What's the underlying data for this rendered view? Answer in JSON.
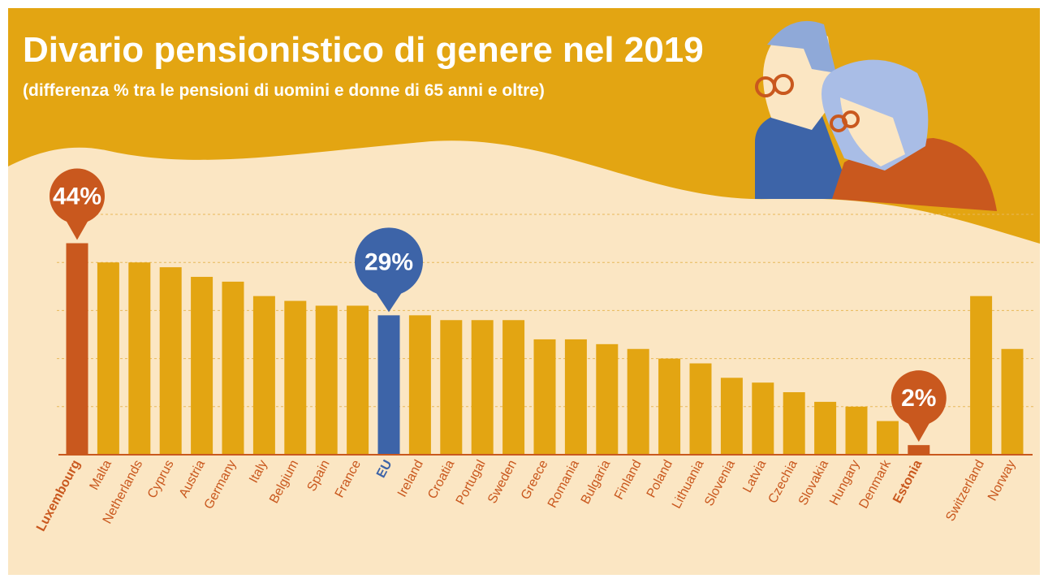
{
  "chart_data": {
    "type": "bar",
    "title": "Divario pensionistico di genere nel 2019",
    "subtitle": "(differenza % tra le pensioni di uomini e donne di 65 anni e oltre)",
    "categories": [
      "Luxembourg",
      "Malta",
      "Netherlands",
      "Cyprus",
      "Austria",
      "Germany",
      "Italy",
      "Belgium",
      "Spain",
      "France",
      "EU",
      "Ireland",
      "Croatia",
      "Portugal",
      "Sweden",
      "Greece",
      "Romania",
      "Bulgaria",
      "Finland",
      "Poland",
      "Lithuania",
      "Slovenia",
      "Latvia",
      "Czechia",
      "Slovakia",
      "Hungary",
      "Denmark",
      "Estonia",
      null,
      "Switzerland",
      "Norway"
    ],
    "values": [
      44,
      40,
      40,
      39,
      37,
      36,
      33,
      32,
      31,
      31,
      29,
      29,
      28,
      28,
      28,
      24,
      24,
      23,
      22,
      20,
      19,
      16,
      15,
      13,
      11,
      10,
      7,
      2,
      null,
      33,
      22
    ],
    "value_labels": [
      "44%",
      null,
      null,
      null,
      null,
      null,
      null,
      null,
      null,
      null,
      "29%",
      null,
      null,
      null,
      null,
      null,
      null,
      null,
      null,
      null,
      null,
      null,
      null,
      null,
      null,
      null,
      null,
      "2%",
      null,
      null,
      null
    ],
    "colors": [
      "#c9581e",
      "#e3a512",
      "#e3a512",
      "#e3a512",
      "#e3a512",
      "#e3a512",
      "#e3a512",
      "#e3a512",
      "#e3a512",
      "#e3a512",
      "#3d64a8",
      "#e3a512",
      "#e3a512",
      "#e3a512",
      "#e3a512",
      "#e3a512",
      "#e3a512",
      "#e3a512",
      "#e3a512",
      "#e3a512",
      "#e3a512",
      "#e3a512",
      "#e3a512",
      "#e3a512",
      "#e3a512",
      "#e3a512",
      "#e3a512",
      "#c9581e",
      null,
      "#e3a512",
      "#e3a512"
    ],
    "ylim": [
      0,
      50
    ],
    "yticks": [
      10,
      20,
      30,
      40,
      50
    ],
    "grid": true
  }
}
